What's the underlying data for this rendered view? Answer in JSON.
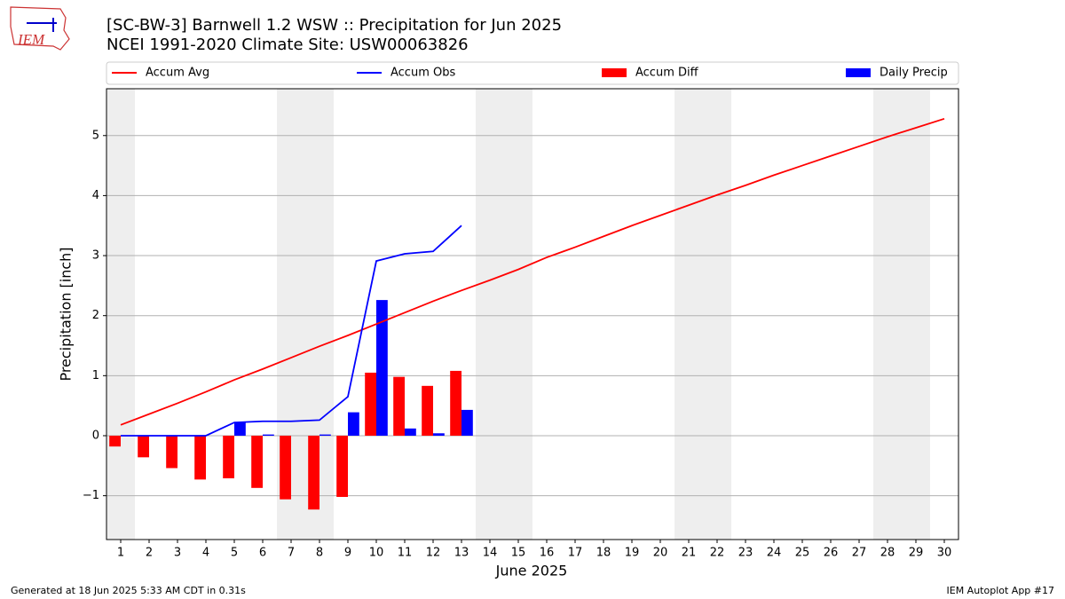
{
  "chart_data": {
    "type": "bar",
    "title": "[SC-BW-3] Barnwell 1.2 WSW :: Precipitation for Jun 2025",
    "subtitle": "NCEI 1991-2020 Climate Site: USW00063826",
    "xlabel": "June 2025",
    "ylabel": "Precipitation [inch]",
    "footer_left": "Generated at 18 Jun 2025 5:33 AM CDT in 0.31s",
    "footer_right": "IEM Autoplot App #17",
    "logo_text": "IEM",
    "x": [
      1,
      2,
      3,
      4,
      5,
      6,
      7,
      8,
      9,
      10,
      11,
      12,
      13,
      14,
      15,
      16,
      17,
      18,
      19,
      20,
      21,
      22,
      23,
      24,
      25,
      26,
      27,
      28,
      29,
      30
    ],
    "xlim": [
      0.5,
      30.5
    ],
    "xticks": [
      1,
      2,
      3,
      4,
      5,
      6,
      7,
      8,
      9,
      10,
      11,
      12,
      13,
      14,
      15,
      16,
      17,
      18,
      19,
      20,
      21,
      22,
      23,
      24,
      25,
      26,
      27,
      28,
      29,
      30
    ],
    "ylim": [
      -1.73,
      5.78
    ],
    "yticks": [
      {
        "value": -1,
        "label": "−1"
      },
      0,
      1,
      2,
      3,
      4,
      5
    ],
    "grid": true,
    "shaded_spans": [
      [
        0.5,
        1.5
      ],
      [
        6.5,
        8.5
      ],
      [
        13.5,
        15.5
      ],
      [
        20.5,
        22.5
      ],
      [
        27.5,
        29.5
      ]
    ],
    "shade_color": "#eeeeee",
    "series": [
      {
        "name": "Accum Avg",
        "type": "line",
        "color": "#ff0000",
        "values": [
          0.18,
          0.36,
          0.54,
          0.73,
          0.93,
          1.11,
          1.3,
          1.49,
          1.67,
          1.86,
          2.05,
          2.24,
          2.42,
          2.59,
          2.77,
          2.97,
          3.14,
          3.32,
          3.5,
          3.67,
          3.84,
          4.01,
          4.17,
          4.34,
          4.5,
          4.66,
          4.82,
          4.98,
          5.13,
          5.28
        ]
      },
      {
        "name": "Accum Obs",
        "type": "line",
        "color": "#0000ff",
        "values": [
          0,
          0,
          0,
          0,
          0.22,
          0.24,
          0.24,
          0.26,
          0.65,
          2.91,
          3.03,
          3.07,
          3.5,
          null,
          null,
          null,
          null,
          null,
          null,
          null,
          null,
          null,
          null,
          null,
          null,
          null,
          null,
          null,
          null,
          null
        ]
      },
      {
        "name": "Accum Diff",
        "type": "bar",
        "color": "#ff0000",
        "values": [
          -0.18,
          -0.36,
          -0.54,
          -0.73,
          -0.71,
          -0.87,
          -1.06,
          -1.23,
          -1.02,
          1.05,
          0.98,
          0.83,
          1.08,
          null,
          null,
          null,
          null,
          null,
          null,
          null,
          null,
          null,
          null,
          null,
          null,
          null,
          null,
          null,
          null,
          null
        ]
      },
      {
        "name": "Daily Precip",
        "type": "bar",
        "color": "#0000ff",
        "values": [
          0,
          0,
          0,
          0,
          0.22,
          0.02,
          0,
          0.02,
          0.39,
          2.26,
          0.12,
          0.04,
          0.43,
          null,
          null,
          null,
          null,
          null,
          null,
          null,
          null,
          null,
          null,
          null,
          null,
          null,
          null,
          null,
          null,
          null
        ]
      }
    ]
  }
}
